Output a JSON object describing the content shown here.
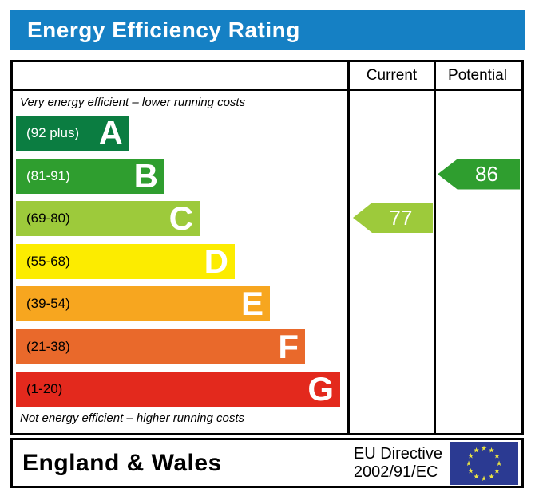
{
  "title": "Energy Efficiency Rating",
  "columns": {
    "current": "Current",
    "potential": "Potential"
  },
  "notes": {
    "top": "Very energy efficient – lower running costs",
    "bottom": "Not energy efficient – higher running costs"
  },
  "chart_data": {
    "type": "bar",
    "subtype": "epc-energy-efficiency-rating",
    "bands": [
      {
        "letter": "A",
        "range_label": "(92 plus)",
        "min": 92,
        "max": 100,
        "color": "#0b7d41",
        "label_color": "#ffffff"
      },
      {
        "letter": "B",
        "range_label": "(81-91)",
        "min": 81,
        "max": 91,
        "color": "#2f9e2f",
        "label_color": "#ffffff"
      },
      {
        "letter": "C",
        "range_label": "(69-80)",
        "min": 69,
        "max": 80,
        "color": "#9dca3b",
        "label_color": "#000000"
      },
      {
        "letter": "D",
        "range_label": "(55-68)",
        "min": 55,
        "max": 68,
        "color": "#fcec00",
        "label_color": "#000000"
      },
      {
        "letter": "E",
        "range_label": "(39-54)",
        "min": 39,
        "max": 54,
        "color": "#f7a61f",
        "label_color": "#000000"
      },
      {
        "letter": "F",
        "range_label": "(21-38)",
        "min": 21,
        "max": 38,
        "color": "#e9692b",
        "label_color": "#000000"
      },
      {
        "letter": "G",
        "range_label": "(1-20)",
        "min": 1,
        "max": 20,
        "color": "#e3291d",
        "label_color": "#000000"
      }
    ],
    "current": {
      "value": 77,
      "band": "C",
      "color": "#9dca3b"
    },
    "potential": {
      "value": 86,
      "band": "B",
      "color": "#2f9e2f"
    }
  },
  "footer": {
    "region": "England & Wales",
    "directive_line1": "EU Directive",
    "directive_line2": "2002/91/EC",
    "eu_flag": {
      "background": "#2b3a92",
      "star_color": "#e9e344",
      "star_count": 12
    }
  },
  "colors": {
    "title_bar": "#1580c4",
    "title_text": "#ffffff",
    "border": "#000000"
  }
}
